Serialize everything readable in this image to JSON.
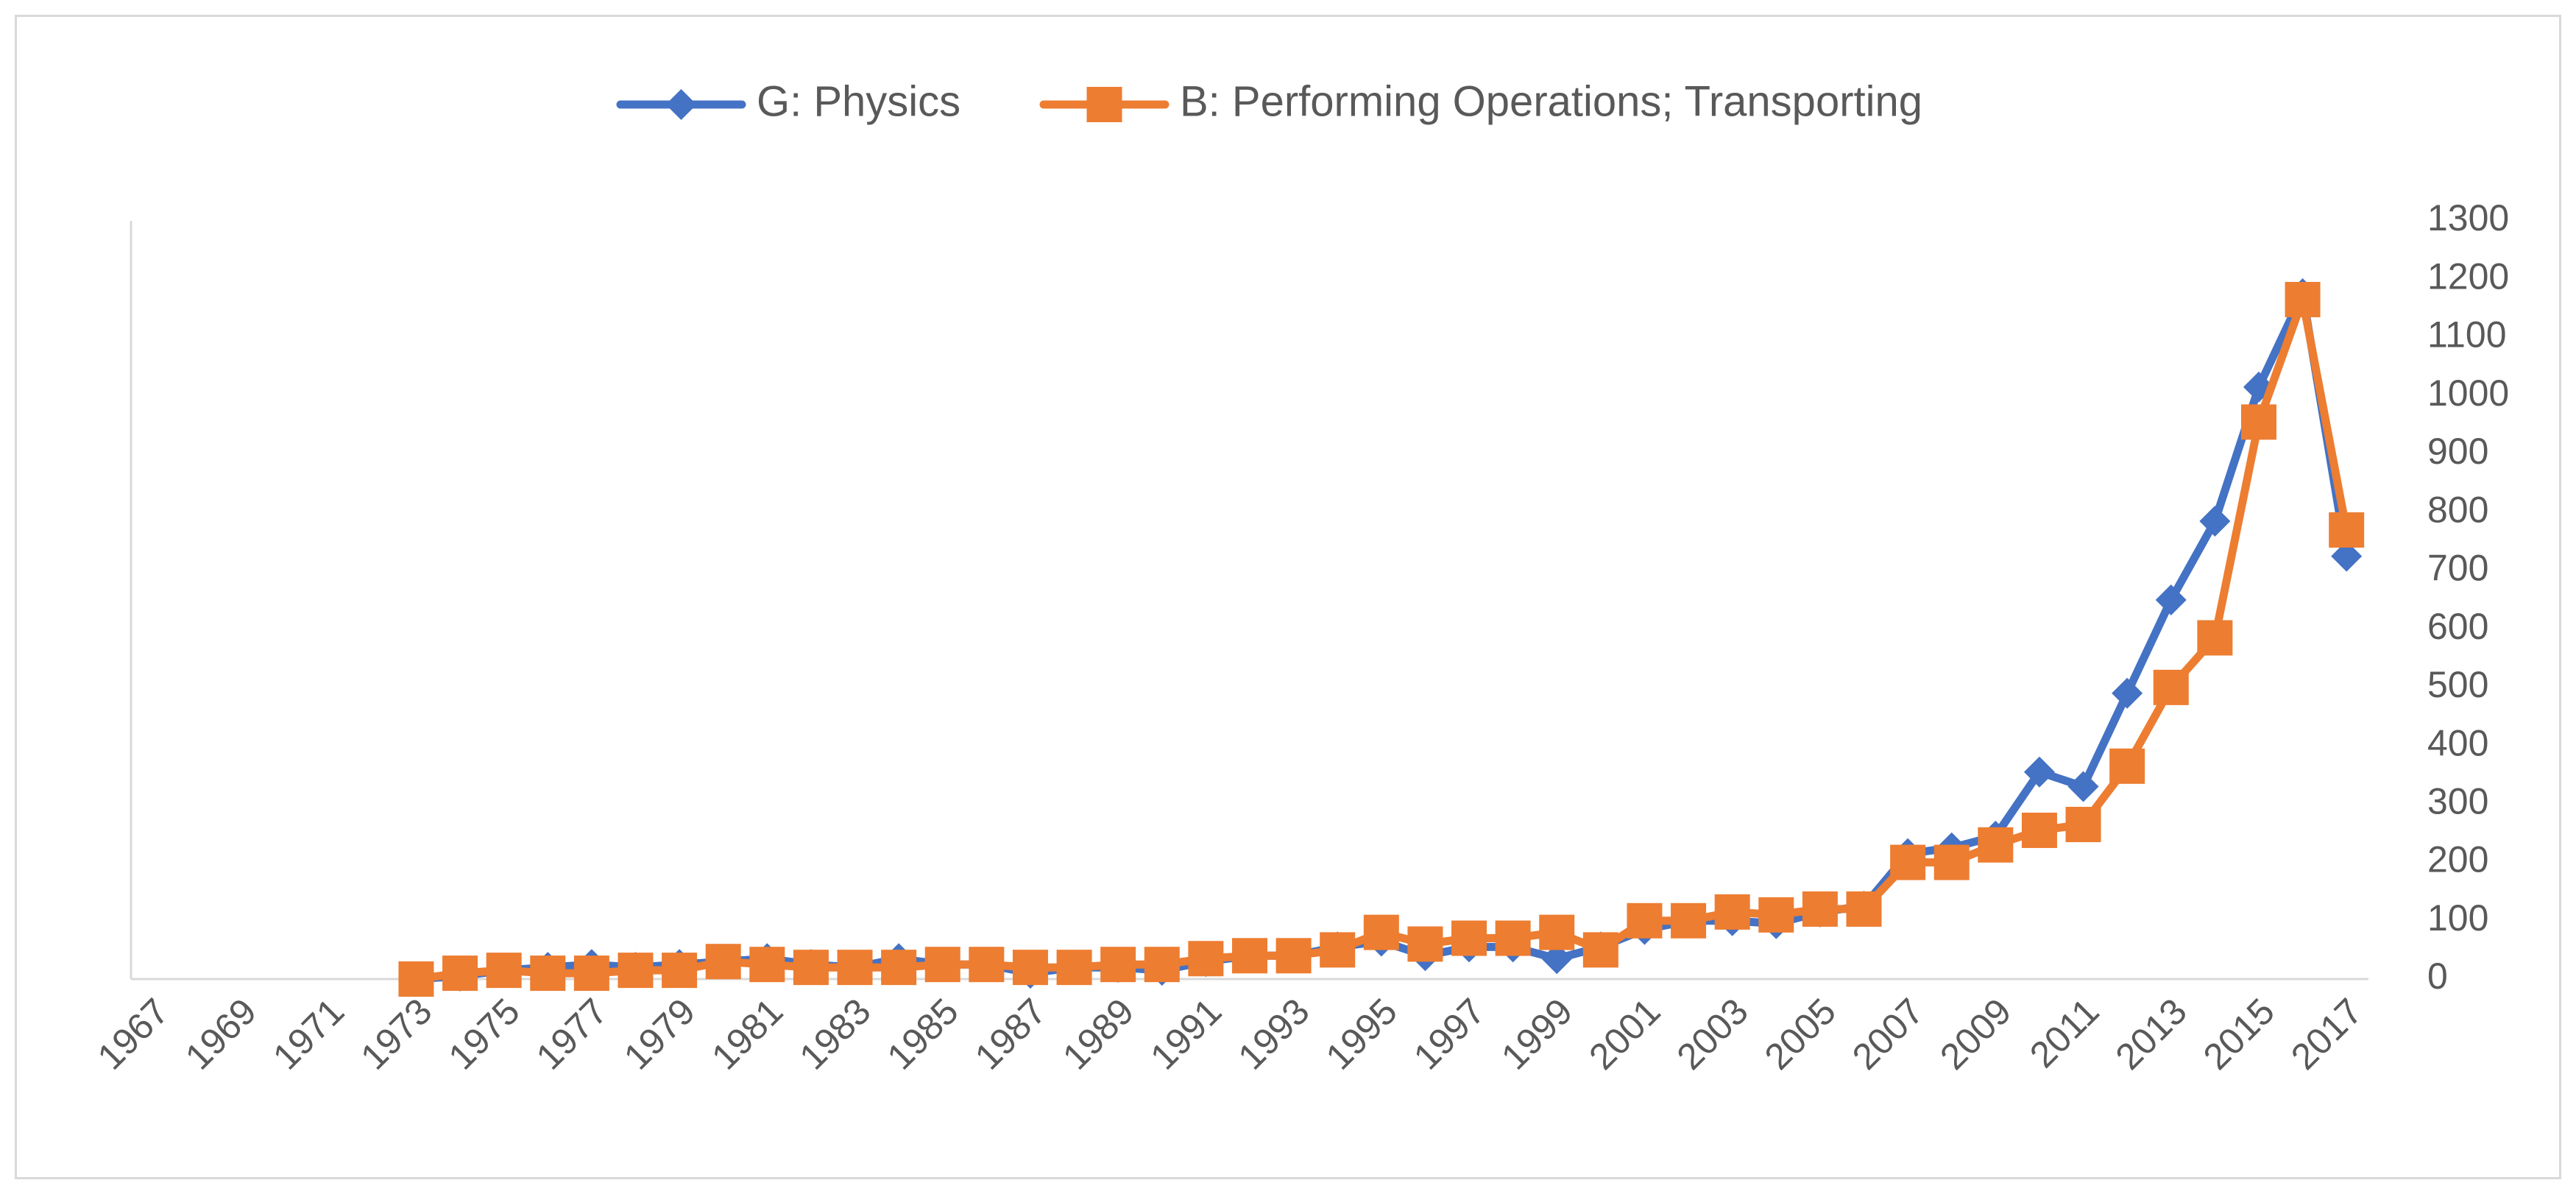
{
  "chart_data": {
    "type": "line",
    "title": "",
    "xlabel": "",
    "ylabel": "",
    "x": [
      1967,
      1968,
      1969,
      1970,
      1971,
      1972,
      1973,
      1974,
      1975,
      1976,
      1977,
      1978,
      1979,
      1980,
      1981,
      1982,
      1983,
      1984,
      1985,
      1986,
      1987,
      1988,
      1989,
      1990,
      1991,
      1992,
      1993,
      1994,
      1995,
      1996,
      1997,
      1998,
      1999,
      2000,
      2001,
      2002,
      2003,
      2004,
      2005,
      2006,
      2007,
      2008,
      2009,
      2010,
      2011,
      2012,
      2013,
      2014,
      2015,
      2016,
      2017
    ],
    "x_tick_labels": [
      "1967",
      "1969",
      "1971",
      "1973",
      "1975",
      "1977",
      "1979",
      "1981",
      "1983",
      "1985",
      "1987",
      "1989",
      "1991",
      "1993",
      "1995",
      "1997",
      "1999",
      "2001",
      "2003",
      "2005",
      "2007",
      "2009",
      "2011",
      "2013",
      "2015",
      "2017"
    ],
    "y_ticks": [
      0,
      100,
      200,
      300,
      400,
      500,
      600,
      700,
      800,
      900,
      1000,
      1100,
      1200,
      1300
    ],
    "ylim": [
      0,
      1300
    ],
    "y_axis_position": "right",
    "grid": false,
    "legend_position": "top",
    "series": [
      {
        "name": "G: Physics",
        "color": "#4472c4",
        "marker": "diamond",
        "values": [
          null,
          null,
          null,
          null,
          null,
          null,
          0,
          5,
          15,
          20,
          25,
          20,
          25,
          30,
          35,
          25,
          20,
          35,
          25,
          25,
          10,
          20,
          20,
          15,
          30,
          40,
          40,
          55,
          65,
          40,
          55,
          55,
          35,
          55,
          85,
          100,
          100,
          95,
          115,
          125,
          215,
          225,
          245,
          355,
          330,
          490,
          650,
          785,
          1015,
          1175,
          725
        ]
      },
      {
        "name": "B: Performing Operations; Transporting",
        "color": "#ed7d31",
        "marker": "square",
        "values": [
          null,
          null,
          null,
          null,
          null,
          null,
          0,
          10,
          15,
          10,
          10,
          15,
          15,
          30,
          25,
          20,
          20,
          20,
          25,
          25,
          20,
          20,
          25,
          25,
          35,
          40,
          40,
          50,
          80,
          60,
          70,
          70,
          80,
          50,
          100,
          100,
          115,
          110,
          120,
          120,
          200,
          200,
          230,
          255,
          265,
          365,
          500,
          585,
          955,
          1165,
          770
        ]
      }
    ]
  }
}
